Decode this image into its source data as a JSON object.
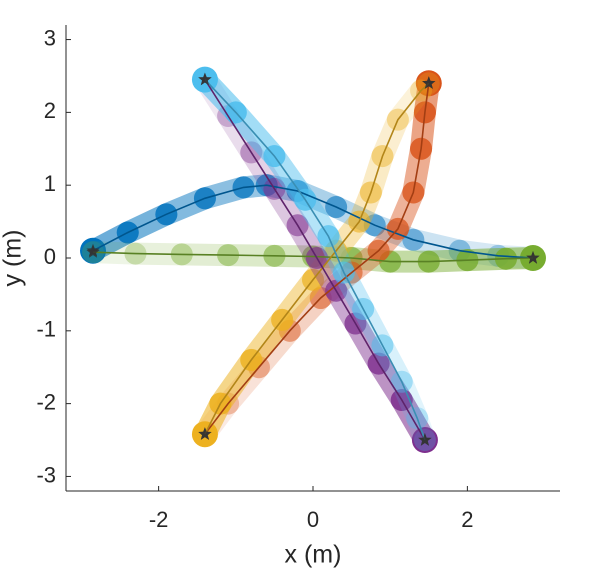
{
  "chart_data": {
    "type": "line",
    "xlabel": "x (m)",
    "ylabel": "y (m)",
    "xlim": [
      -3.2,
      3.2
    ],
    "ylim": [
      -3.2,
      3.2
    ],
    "xticks": [
      -2,
      0,
      2
    ],
    "yticks": [
      -3,
      -2,
      -1,
      0,
      1,
      2,
      3
    ],
    "series": [
      {
        "color": "#0072bd",
        "x": [
          2.85,
          2.4,
          1.9,
          1.3,
          0.8,
          0.3,
          -0.2,
          -0.6,
          -0.9,
          -1.4,
          -1.9,
          -2.4,
          -2.85
        ],
        "y": [
          0,
          0.03,
          0.1,
          0.25,
          0.45,
          0.7,
          0.92,
          1.0,
          0.97,
          0.82,
          0.6,
          0.35,
          0.1
        ]
      },
      {
        "color": "#77ac30",
        "x": [
          -2.85,
          -2.3,
          -1.7,
          -1.1,
          -0.5,
          0,
          0.5,
          1.0,
          1.5,
          2.0,
          2.5,
          2.85
        ],
        "y": [
          0.08,
          0.06,
          0.05,
          0.04,
          0.03,
          0.02,
          0,
          -0.05,
          -0.05,
          -0.03,
          -0.01,
          0
        ]
      },
      {
        "color": "#d95319",
        "x": [
          -1.4,
          -1.1,
          -0.7,
          -0.3,
          0.1,
          0.5,
          0.85,
          1.1,
          1.3,
          1.4,
          1.45,
          1.5
        ],
        "y": [
          -2.42,
          -2.0,
          -1.5,
          -1.0,
          -0.55,
          -0.2,
          0.1,
          0.4,
          0.9,
          1.5,
          2.0,
          2.4
        ]
      },
      {
        "color": "#edb120",
        "x": [
          1.5,
          1.4,
          1.1,
          0.9,
          0.75,
          0.6,
          0.3,
          0,
          -0.4,
          -0.8,
          -1.2,
          -1.4
        ],
        "y": [
          2.4,
          2.3,
          1.9,
          1.4,
          0.9,
          0.5,
          0.1,
          -0.3,
          -0.85,
          -1.4,
          -2.0,
          -2.42
        ]
      },
      {
        "color": "#7e2f8e",
        "x": [
          -1.4,
          -1.1,
          -0.8,
          -0.5,
          -0.2,
          0.05,
          0.3,
          0.55,
          0.85,
          1.15,
          1.45
        ],
        "y": [
          2.45,
          1.95,
          1.45,
          0.95,
          0.45,
          0,
          -0.45,
          -0.9,
          -1.45,
          -1.95,
          -2.5
        ]
      },
      {
        "color": "#4dbeee",
        "x": [
          1.45,
          1.35,
          1.15,
          0.9,
          0.65,
          0.4,
          0.2,
          -0.1,
          -0.5,
          -1.0,
          -1.4
        ],
        "y": [
          -2.5,
          -2.2,
          -1.7,
          -1.2,
          -0.7,
          -0.2,
          0.3,
          0.8,
          1.4,
          2.0,
          2.45
        ]
      }
    ]
  }
}
